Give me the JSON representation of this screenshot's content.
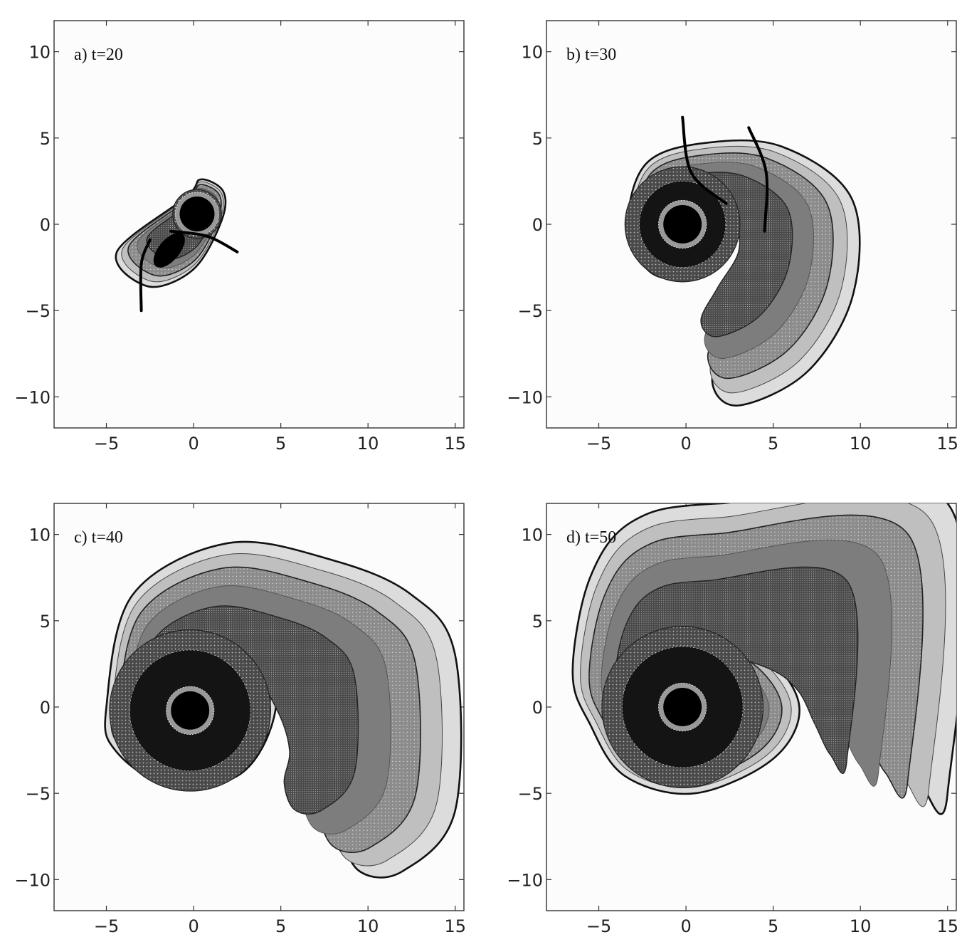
{
  "chart_data": [
    {
      "type": "contour",
      "panel_label": "a) t=20",
      "xlim": [
        -8,
        15.5
      ],
      "ylim": [
        -11.8,
        11.8
      ],
      "x_ticks": [
        "−5",
        "0",
        "5",
        "10",
        "15"
      ],
      "x_tick_values": [
        -5,
        0,
        5,
        10,
        15
      ],
      "y_ticks": [
        "10",
        "5",
        "0",
        "−5",
        "−10"
      ],
      "y_tick_values": [
        10,
        5,
        0,
        -5,
        -10
      ],
      "central_object": {
        "x": 0.2,
        "y": 0.6,
        "radius": 1.0
      },
      "secondary_blob": {
        "x": -1.4,
        "y": -1.5
      },
      "shocks": [
        {
          "points": [
            [
              -2.5,
              -0.9
            ],
            [
              -3.0,
              -2.3
            ],
            [
              -3.0,
              -5.0
            ]
          ]
        },
        {
          "points": [
            [
              -1.3,
              -0.4
            ],
            [
              0.8,
              -0.7
            ],
            [
              2.5,
              -1.6
            ]
          ]
        }
      ],
      "arm_path": [
        [
          -4.4,
          -1.6
        ],
        [
          -2.6,
          -3.6
        ],
        [
          0.0,
          -2.6
        ],
        [
          1.6,
          0.2
        ],
        [
          1.7,
          1.9
        ],
        [
          0.4,
          2.6
        ],
        [
          -0.4,
          1.6
        ]
      ]
    },
    {
      "type": "contour",
      "panel_label": "b) t=30",
      "xlim": [
        -8,
        15.5
      ],
      "ylim": [
        -11.8,
        11.8
      ],
      "x_ticks": [
        "−5",
        "0",
        "5",
        "10",
        "15"
      ],
      "x_tick_values": [
        -5,
        0,
        5,
        10,
        15
      ],
      "y_ticks": [
        "10",
        "5",
        "0",
        "−5",
        "−10"
      ],
      "y_tick_values": [
        10,
        5,
        0,
        -5,
        -10
      ],
      "central_object": {
        "x": -0.2,
        "y": 0.0,
        "radius": 1.1
      },
      "shocks": [
        {
          "points": [
            [
              -0.2,
              6.2
            ],
            [
              0.3,
              3.0
            ],
            [
              2.3,
              1.2
            ]
          ]
        },
        {
          "points": [
            [
              3.6,
              5.6
            ],
            [
              4.6,
              3.0
            ],
            [
              4.5,
              -0.4
            ]
          ]
        }
      ],
      "arm_path": [
        [
          -3.3,
          0.0
        ],
        [
          -2.3,
          3.5
        ],
        [
          1.0,
          4.7
        ],
        [
          5.5,
          4.5
        ],
        [
          9.5,
          1.5
        ],
        [
          9.6,
          -4.0
        ],
        [
          7.0,
          -8.5
        ],
        [
          3.0,
          -10.5
        ],
        [
          1.5,
          -9.0
        ],
        [
          3.0,
          -6.0
        ],
        [
          5.0,
          -2.5
        ],
        [
          4.5,
          0.8
        ],
        [
          2.5,
          2.0
        ],
        [
          1.8,
          0.0
        ],
        [
          0.5,
          -2.8
        ],
        [
          -2.0,
          -2.8
        ]
      ]
    },
    {
      "type": "contour",
      "panel_label": "c) t=40",
      "xlim": [
        -8,
        15.5
      ],
      "ylim": [
        -11.8,
        11.8
      ],
      "x_ticks": [
        "−5",
        "0",
        "5",
        "10",
        "15"
      ],
      "x_tick_values": [
        -5,
        0,
        5,
        10,
        15
      ],
      "y_ticks": [
        "10",
        "5",
        "0",
        "−5",
        "−10"
      ],
      "y_tick_values": [
        10,
        5,
        0,
        -5,
        -10
      ],
      "central_object": {
        "x": -0.2,
        "y": -0.2,
        "radius": 1.1
      },
      "arm_path": [
        [
          -5.0,
          0.0
        ],
        [
          -3.5,
          6.5
        ],
        [
          2.0,
          9.5
        ],
        [
          8.0,
          8.5
        ],
        [
          12.5,
          6.5
        ],
        [
          15.0,
          3.0
        ],
        [
          15.0,
          -6.0
        ],
        [
          12.0,
          -9.5
        ],
        [
          9.5,
          -9.5
        ],
        [
          8.5,
          -7.0
        ],
        [
          9.0,
          -4.0
        ],
        [
          8.0,
          -0.5
        ],
        [
          5.5,
          3.5
        ],
        [
          2.0,
          5.0
        ],
        [
          4.5,
          2.5
        ],
        [
          4.5,
          -1.0
        ],
        [
          2.5,
          -4.0
        ],
        [
          -1.5,
          -4.5
        ],
        [
          -4.5,
          -2.5
        ]
      ]
    },
    {
      "type": "contour",
      "panel_label": "d) t=50",
      "xlim": [
        -8,
        15.5
      ],
      "ylim": [
        -11.8,
        11.8
      ],
      "x_ticks": [
        "−5",
        "0",
        "5",
        "10",
        "15"
      ],
      "x_tick_values": [
        -5,
        0,
        5,
        10,
        15
      ],
      "y_ticks": [
        "10",
        "5",
        "0",
        "−5",
        "−10"
      ],
      "y_tick_values": [
        10,
        5,
        0,
        -5,
        -10
      ],
      "central_object": {
        "x": -0.2,
        "y": 0.0,
        "radius": 1.1
      },
      "arm_path": [
        [
          -6.5,
          2.0
        ],
        [
          -5.5,
          7.5
        ],
        [
          -3.0,
          10.8
        ],
        [
          2.0,
          11.8
        ],
        [
          15.0,
          11.8
        ],
        [
          15.0,
          -5.0
        ],
        [
          13.5,
          -4.5
        ],
        [
          12.0,
          -1.5
        ],
        [
          10.5,
          1.5
        ],
        [
          8.0,
          3.5
        ],
        [
          3.0,
          5.0
        ],
        [
          0.5,
          4.5
        ],
        [
          4.5,
          3.0
        ],
        [
          6.5,
          0.0
        ],
        [
          5.0,
          -3.0
        ],
        [
          0.5,
          -5.0
        ],
        [
          -3.5,
          -4.0
        ],
        [
          -5.5,
          -1.0
        ]
      ]
    }
  ]
}
